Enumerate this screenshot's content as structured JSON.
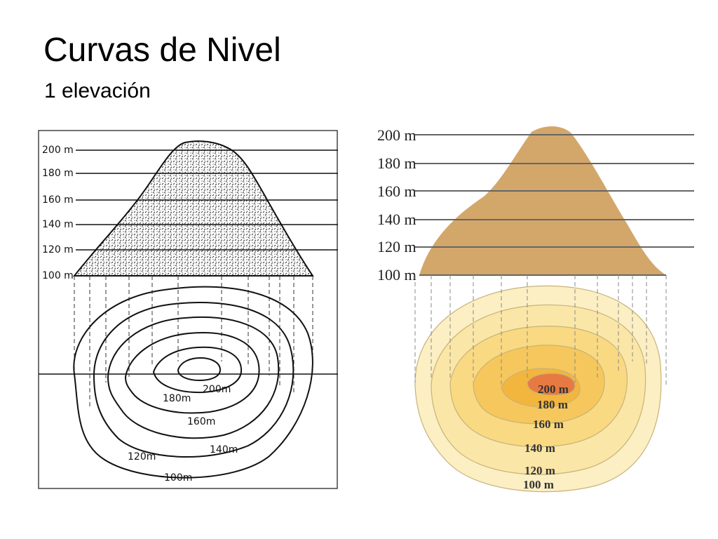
{
  "slide": {
    "title": "Curvas de Nivel",
    "subtitle": "1 elevación"
  },
  "left_diagram": {
    "elevation_labels": [
      "200 m",
      "180 m",
      "160 m",
      "140 m",
      "120 m",
      "100 m"
    ],
    "contour_labels": [
      "200m",
      "180m",
      "160m",
      "140m",
      "120m",
      "100m"
    ]
  },
  "right_diagram": {
    "elevation_labels": [
      "200 m",
      "180 m",
      "160 m",
      "140 m",
      "120 m",
      "100 m"
    ],
    "contour_labels": [
      "200 m",
      "180 m",
      "160 m",
      "140 m",
      "120 m",
      "100 m"
    ],
    "colors": {
      "mountain": "#d3a66a",
      "contour_100": "#fbefc3",
      "contour_120": "#fae6a6",
      "contour_140": "#f9d982",
      "contour_160": "#f6c75c",
      "contour_180": "#f2b53d",
      "contour_200": "#e67a42"
    }
  }
}
